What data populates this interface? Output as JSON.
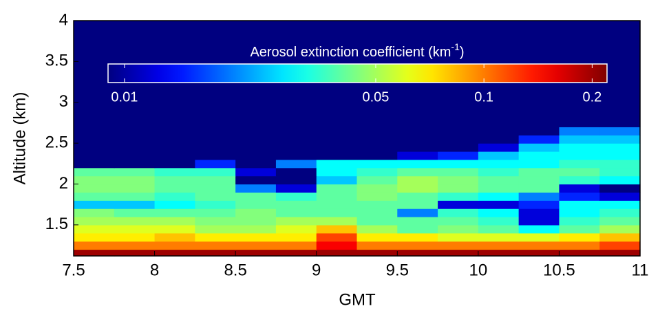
{
  "chart_data": {
    "type": "heatmap",
    "x_label": "GMT",
    "y_label": "Altitude (km)",
    "xlim": [
      7.5,
      11
    ],
    "ylim": [
      1.12,
      4
    ],
    "xticks": [
      7.5,
      8,
      8.5,
      9,
      9.5,
      10,
      10.5,
      11
    ],
    "yticks": [
      1.5,
      2,
      2.5,
      3,
      3.5,
      4
    ],
    "x_edges": [
      7.5,
      7.75,
      8,
      8.25,
      8.5,
      8.75,
      9,
      9.25,
      9.5,
      9.75,
      10,
      10.25,
      10.5,
      10.75,
      11
    ],
    "y_edges": [
      1.12,
      1.2,
      1.3,
      1.4,
      1.5,
      1.6,
      1.7,
      1.8,
      1.9,
      2.0,
      2.1,
      2.2,
      2.3,
      2.4,
      2.5,
      2.6,
      2.7,
      4
    ],
    "z": [
      [
        0.2,
        0.2,
        0.2,
        0.2,
        0.2,
        0.2,
        0.2,
        0.2,
        0.2,
        0.2,
        0.2,
        0.2,
        0.2,
        0.2
      ],
      [
        0.1,
        0.1,
        0.1,
        0.1,
        0.1,
        0.1,
        0.15,
        0.1,
        0.1,
        0.1,
        0.1,
        0.1,
        0.1,
        0.12
      ],
      [
        0.07,
        0.07,
        0.08,
        0.07,
        0.07,
        0.07,
        0.12,
        0.07,
        0.07,
        0.06,
        0.06,
        0.06,
        0.07,
        0.08
      ],
      [
        0.06,
        0.06,
        0.06,
        0.05,
        0.05,
        0.06,
        0.08,
        0.05,
        0.04,
        0.045,
        0.04,
        0.03,
        0.04,
        0.05
      ],
      [
        0.05,
        0.05,
        0.05,
        0.045,
        0.045,
        0.05,
        0.05,
        0.04,
        0.04,
        0.04,
        0.035,
        0.012,
        0.035,
        0.04
      ],
      [
        0.045,
        0.04,
        0.04,
        0.04,
        0.045,
        0.04,
        0.04,
        0.04,
        0.02,
        0.035,
        0.03,
        0.012,
        0.03,
        0.035
      ],
      [
        0.025,
        0.025,
        0.03,
        0.035,
        0.04,
        0.04,
        0.04,
        0.04,
        0.04,
        0.012,
        0.012,
        0.015,
        0.03,
        0.03
      ],
      [
        0.04,
        0.04,
        0.035,
        0.04,
        0.04,
        0.035,
        0.04,
        0.045,
        0.04,
        0.035,
        0.03,
        0.02,
        0.015,
        0.012
      ],
      [
        0.045,
        0.045,
        0.04,
        0.04,
        0.02,
        0.012,
        0.04,
        0.045,
        0.05,
        0.045,
        0.04,
        0.04,
        0.012,
        0.009
      ],
      [
        0.045,
        0.045,
        0.04,
        0.04,
        0.009,
        0.009,
        0.025,
        0.04,
        0.05,
        0.045,
        0.04,
        0.04,
        0.035,
        0.03
      ],
      [
        0.04,
        0.04,
        0.035,
        0.035,
        0.012,
        0.009,
        0.03,
        0.035,
        0.04,
        0.04,
        0.035,
        0.04,
        0.04,
        0.035
      ],
      [
        0.009,
        0.009,
        0.009,
        0.015,
        0.009,
        0.02,
        0.03,
        0.03,
        0.03,
        0.03,
        0.03,
        0.03,
        0.035,
        0.035
      ],
      [
        0.009,
        0.009,
        0.009,
        0.009,
        0.009,
        0.009,
        0.009,
        0.009,
        0.012,
        0.015,
        0.025,
        0.03,
        0.03,
        0.03
      ],
      [
        0.009,
        0.009,
        0.009,
        0.009,
        0.009,
        0.009,
        0.009,
        0.009,
        0.009,
        0.009,
        0.012,
        0.025,
        0.03,
        0.03
      ],
      [
        0.009,
        0.009,
        0.009,
        0.009,
        0.009,
        0.009,
        0.009,
        0.009,
        0.009,
        0.009,
        0.009,
        0.015,
        0.025,
        0.025
      ],
      [
        0.009,
        0.009,
        0.009,
        0.009,
        0.009,
        0.009,
        0.009,
        0.009,
        0.009,
        0.009,
        0.009,
        0.009,
        0.02,
        0.02
      ],
      [
        0.009,
        0.009,
        0.009,
        0.009,
        0.009,
        0.009,
        0.009,
        0.009,
        0.009,
        0.009,
        0.009,
        0.009,
        0.009,
        0.009
      ]
    ],
    "colormap": "jet",
    "colorbar": {
      "label": "Aerosol extinction coefficient (km",
      "label_superscript": "-1",
      "label_end": ")",
      "log_scale": true,
      "clim": [
        0.009,
        0.22
      ],
      "ticks": [
        0.01,
        0.05,
        0.1,
        0.2
      ]
    }
  }
}
